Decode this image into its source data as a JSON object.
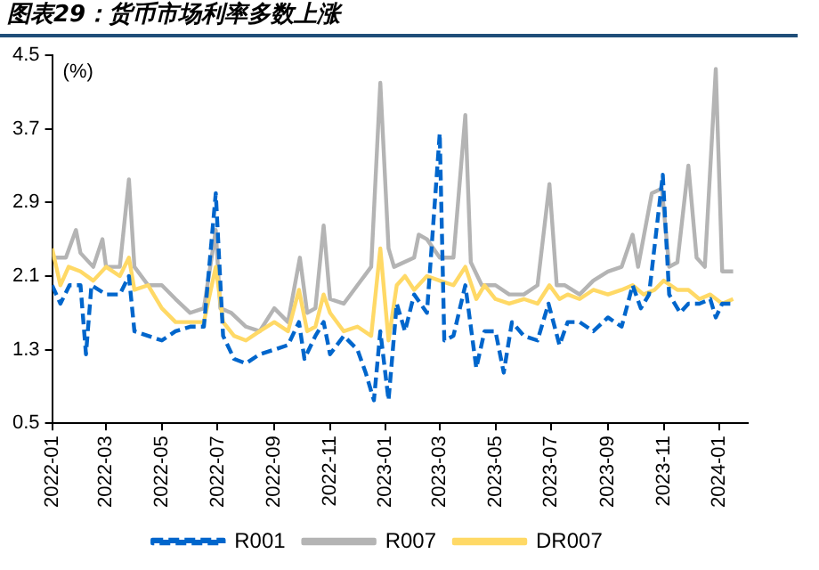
{
  "chart_data": {
    "type": "line",
    "title": "图表29：货币市场利率多数上涨",
    "ylabel": "(%)",
    "legend": "bottom",
    "marker": "none",
    "xlim": [
      "2022-01-01",
      "2024-02-01"
    ],
    "xticks": [
      "2022-01",
      "2022-03",
      "2022-05",
      "2022-07",
      "2022-09",
      "2022-11",
      "2023-01",
      "2023-03",
      "2023-05",
      "2023-07",
      "2023-09",
      "2023-11",
      "2024-01"
    ],
    "ylim": [
      0.5,
      4.5
    ],
    "yticks": [
      0.5,
      1.3,
      2.1,
      2.9,
      3.7,
      4.5
    ],
    "series": [
      {
        "name": "R007",
        "color": "#b4b4b4",
        "line_style": "solid",
        "x": [
          "2022-01-01",
          "2022-01-16",
          "2022-01-27",
          "2022-02-01",
          "2022-02-15",
          "2022-02-25",
          "2022-03-01",
          "2022-03-16",
          "2022-03-26",
          "2022-04-01",
          "2022-04-16",
          "2022-05-01",
          "2022-05-16",
          "2022-06-01",
          "2022-06-16",
          "2022-06-29",
          "2022-07-04",
          "2022-07-16",
          "2022-08-01",
          "2022-08-16",
          "2022-09-01",
          "2022-09-16",
          "2022-09-29",
          "2022-10-07",
          "2022-10-16",
          "2022-10-25",
          "2022-11-01",
          "2022-11-16",
          "2022-12-01",
          "2022-12-16",
          "2022-12-26",
          "2023-01-04",
          "2023-01-10",
          "2023-02-01",
          "2023-02-06",
          "2023-02-15",
          "2023-03-01",
          "2023-03-16",
          "2023-03-29",
          "2023-04-04",
          "2023-04-16",
          "2023-05-01",
          "2023-05-16",
          "2023-06-01",
          "2023-06-16",
          "2023-06-29",
          "2023-07-07",
          "2023-07-16",
          "2023-08-01",
          "2023-08-16",
          "2023-09-01",
          "2023-09-16",
          "2023-09-28",
          "2023-10-04",
          "2023-10-19",
          "2023-10-30",
          "2023-11-07",
          "2023-11-16",
          "2023-11-28",
          "2023-12-07",
          "2023-12-16",
          "2023-12-28",
          "2024-01-04",
          "2024-01-16"
        ],
        "values": [
          2.3,
          2.3,
          2.6,
          2.35,
          2.2,
          2.5,
          2.2,
          2.2,
          3.15,
          2.2,
          2.0,
          2.0,
          1.85,
          1.7,
          1.75,
          2.6,
          1.75,
          1.7,
          1.55,
          1.5,
          1.75,
          1.6,
          2.3,
          1.7,
          1.75,
          2.65,
          1.85,
          1.8,
          2.0,
          2.2,
          4.2,
          2.4,
          2.2,
          2.3,
          2.55,
          2.5,
          2.3,
          2.3,
          3.85,
          2.25,
          2.0,
          2.0,
          1.9,
          1.9,
          2.0,
          3.1,
          2.0,
          2.0,
          1.9,
          2.05,
          2.15,
          2.2,
          2.55,
          2.2,
          3.0,
          3.05,
          2.2,
          2.25,
          3.3,
          2.3,
          2.2,
          4.35,
          2.15,
          2.15
        ]
      },
      {
        "name": "DR007",
        "color": "#ffd966",
        "line_style": "solid",
        "x": [
          "2022-01-01",
          "2022-01-10",
          "2022-01-19",
          "2022-02-01",
          "2022-02-15",
          "2022-03-01",
          "2022-03-16",
          "2022-03-26",
          "2022-04-01",
          "2022-04-16",
          "2022-05-01",
          "2022-05-16",
          "2022-06-01",
          "2022-06-16",
          "2022-06-29",
          "2022-07-07",
          "2022-07-19",
          "2022-08-01",
          "2022-08-16",
          "2022-09-01",
          "2022-09-16",
          "2022-09-28",
          "2022-10-07",
          "2022-10-16",
          "2022-10-25",
          "2022-11-01",
          "2022-11-16",
          "2022-12-01",
          "2022-12-16",
          "2022-12-26",
          "2023-01-04",
          "2023-01-13",
          "2023-01-22",
          "2023-02-01",
          "2023-02-15",
          "2023-03-01",
          "2023-03-16",
          "2023-03-29",
          "2023-04-10",
          "2023-04-19",
          "2023-05-01",
          "2023-05-16",
          "2023-06-01",
          "2023-06-16",
          "2023-06-29",
          "2023-07-10",
          "2023-07-19",
          "2023-08-01",
          "2023-08-16",
          "2023-09-01",
          "2023-09-16",
          "2023-09-28",
          "2023-10-10",
          "2023-10-22",
          "2023-11-01",
          "2023-11-16",
          "2023-11-28",
          "2023-12-10",
          "2023-12-22",
          "2024-01-04",
          "2024-01-16"
        ],
        "values": [
          2.4,
          2.0,
          2.2,
          2.15,
          2.05,
          2.2,
          2.1,
          2.3,
          1.95,
          2.0,
          1.75,
          1.6,
          1.6,
          1.6,
          2.2,
          1.6,
          1.45,
          1.4,
          1.5,
          1.6,
          1.5,
          1.95,
          1.5,
          1.55,
          1.9,
          1.7,
          1.5,
          1.55,
          1.45,
          2.4,
          1.4,
          2.0,
          2.1,
          1.95,
          2.1,
          2.05,
          2.0,
          2.2,
          1.85,
          2.0,
          1.85,
          1.8,
          1.85,
          1.8,
          2.0,
          1.85,
          1.9,
          1.85,
          1.95,
          1.9,
          1.95,
          2.0,
          1.9,
          1.95,
          2.05,
          1.95,
          1.95,
          1.85,
          1.9,
          1.8,
          1.85
        ]
      },
      {
        "name": "R001",
        "color": "#0066cc",
        "line_style": "dashed",
        "x": [
          "2022-01-01",
          "2022-01-10",
          "2022-01-20",
          "2022-02-01",
          "2022-02-07",
          "2022-02-13",
          "2022-03-01",
          "2022-03-16",
          "2022-03-26",
          "2022-04-01",
          "2022-04-16",
          "2022-05-01",
          "2022-05-16",
          "2022-06-01",
          "2022-06-16",
          "2022-06-29",
          "2022-07-07",
          "2022-07-19",
          "2022-08-01",
          "2022-08-16",
          "2022-09-01",
          "2022-09-16",
          "2022-09-28",
          "2022-10-04",
          "2022-10-16",
          "2022-10-25",
          "2022-11-01",
          "2022-11-16",
          "2022-12-01",
          "2022-12-10",
          "2022-12-19",
          "2022-12-26",
          "2023-01-04",
          "2023-01-13",
          "2023-01-22",
          "2023-02-01",
          "2023-02-15",
          "2023-03-01",
          "2023-03-06",
          "2023-03-16",
          "2023-03-29",
          "2023-04-10",
          "2023-04-19",
          "2023-05-01",
          "2023-05-10",
          "2023-05-19",
          "2023-06-01",
          "2023-06-16",
          "2023-06-28",
          "2023-07-10",
          "2023-07-19",
          "2023-08-01",
          "2023-08-16",
          "2023-09-01",
          "2023-09-16",
          "2023-09-28",
          "2023-10-07",
          "2023-10-16",
          "2023-10-31",
          "2023-11-07",
          "2023-11-19",
          "2023-11-28",
          "2023-12-10",
          "2023-12-22",
          "2023-12-28",
          "2024-01-04",
          "2024-01-16"
        ],
        "values": [
          2.0,
          1.8,
          2.0,
          2.0,
          1.25,
          2.0,
          1.9,
          1.9,
          2.1,
          1.5,
          1.45,
          1.4,
          1.5,
          1.55,
          1.55,
          3.0,
          1.45,
          1.2,
          1.15,
          1.25,
          1.3,
          1.35,
          1.6,
          1.2,
          1.45,
          1.6,
          1.25,
          1.45,
          1.3,
          1.05,
          0.75,
          1.5,
          0.75,
          1.8,
          1.5,
          1.9,
          1.7,
          3.65,
          1.4,
          1.45,
          2.0,
          1.1,
          1.5,
          1.5,
          1.05,
          1.6,
          1.45,
          1.4,
          1.8,
          1.35,
          1.6,
          1.6,
          1.5,
          1.65,
          1.55,
          2.0,
          1.75,
          1.9,
          3.2,
          1.9,
          1.7,
          1.8,
          1.8,
          1.85,
          1.65,
          1.8,
          1.8
        ]
      }
    ]
  }
}
